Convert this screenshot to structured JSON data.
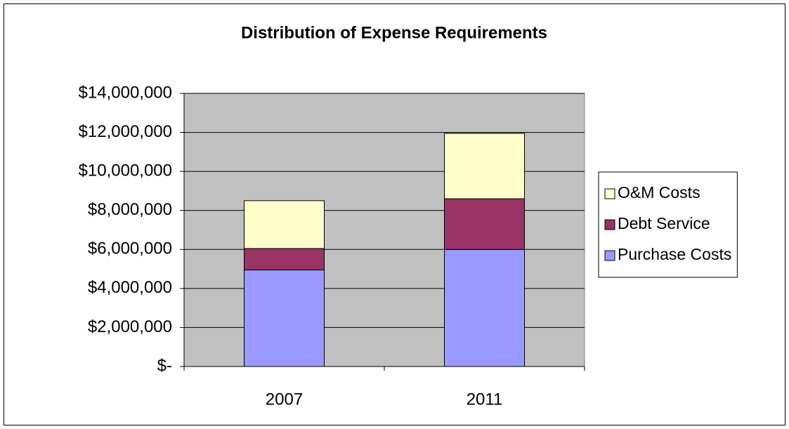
{
  "chart_data": {
    "type": "stacked_bar",
    "title": "Distribution of Expense Requirements",
    "categories": [
      "2007",
      "2011"
    ],
    "series": [
      {
        "name": "Purchase Costs",
        "color": "#9999ff",
        "values": [
          4950000,
          6000000
        ]
      },
      {
        "name": "Debt Service",
        "color": "#993366",
        "values": [
          1100000,
          2600000
        ]
      },
      {
        "name": "O&M Costs",
        "color": "#ffffcc",
        "values": [
          2450000,
          3350000
        ]
      }
    ],
    "ylim": [
      0,
      14000000
    ],
    "yticks": [
      {
        "value": 0,
        "label": "$-"
      },
      {
        "value": 2000000,
        "label": "$2,000,000"
      },
      {
        "value": 4000000,
        "label": "$4,000,000"
      },
      {
        "value": 6000000,
        "label": "$6,000,000"
      },
      {
        "value": 8000000,
        "label": "$8,000,000"
      },
      {
        "value": 10000000,
        "label": "$10,000,000"
      },
      {
        "value": 12000000,
        "label": "$12,000,000"
      },
      {
        "value": 14000000,
        "label": "$14,000,000"
      }
    ],
    "grid": true,
    "legend": "right",
    "plot_background": "#c0c0c0"
  }
}
